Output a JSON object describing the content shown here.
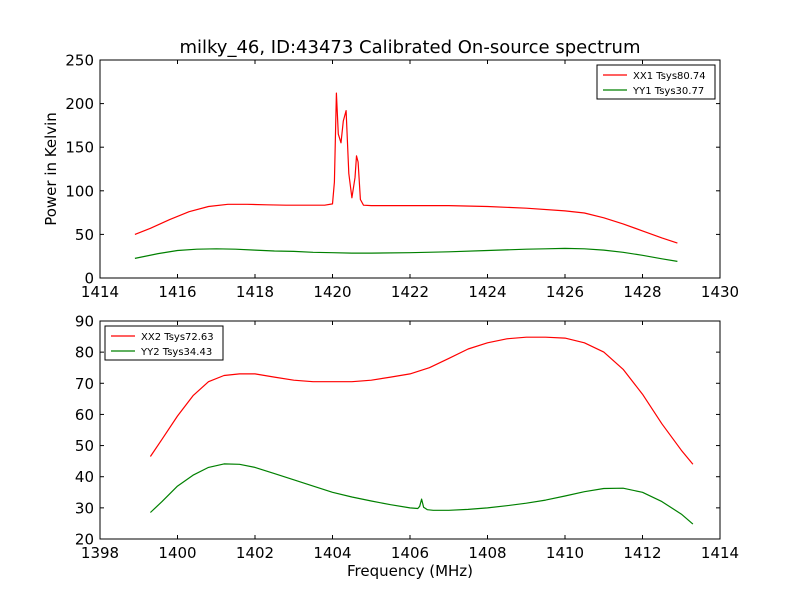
{
  "title": "milky_46, ID:43473 Calibrated On-source spectrum",
  "colors": {
    "xx": "#ff0000",
    "yy": "#008000"
  },
  "chart_data": [
    {
      "type": "line",
      "xlabel": "",
      "ylabel": "Power in Kelvin",
      "xlim": [
        1414,
        1430
      ],
      "ylim": [
        0,
        250
      ],
      "xticks": [
        1414,
        1416,
        1418,
        1420,
        1422,
        1424,
        1426,
        1428,
        1430
      ],
      "yticks": [
        0,
        50,
        100,
        150,
        200,
        250
      ],
      "legend_position": "top-right",
      "series": [
        {
          "name": "XX1 Tsys80.74",
          "color": "#ff0000",
          "x": [
            1414.9,
            1415.3,
            1415.8,
            1416.3,
            1416.8,
            1417.3,
            1417.8,
            1418.3,
            1418.8,
            1419.3,
            1419.8,
            1420.0,
            1420.05,
            1420.1,
            1420.15,
            1420.22,
            1420.28,
            1420.35,
            1420.42,
            1420.5,
            1420.58,
            1420.62,
            1420.66,
            1420.72,
            1420.8,
            1421.0,
            1422.0,
            1423.0,
            1424.0,
            1425.0,
            1426.0,
            1426.5,
            1427.0,
            1427.5,
            1428.0,
            1428.5,
            1428.9
          ],
          "y": [
            50,
            57,
            67,
            76,
            82,
            84.5,
            84.5,
            84,
            83.5,
            83.5,
            83.5,
            85,
            110,
            212,
            165,
            155,
            180,
            192,
            120,
            92,
            115,
            140,
            133,
            90,
            83.5,
            83,
            83,
            83,
            82,
            80,
            77,
            74.5,
            69,
            62,
            54,
            46,
            40
          ]
        },
        {
          "name": "YY1 Tsys30.77",
          "color": "#008000",
          "x": [
            1414.9,
            1415.5,
            1416.0,
            1416.5,
            1417.0,
            1417.5,
            1418.0,
            1418.5,
            1419.0,
            1419.5,
            1420.0,
            1420.5,
            1421.0,
            1422.0,
            1423.0,
            1424.0,
            1425.0,
            1425.5,
            1426.0,
            1426.5,
            1427.0,
            1427.5,
            1428.0,
            1428.5,
            1428.9
          ],
          "y": [
            22.5,
            28,
            31.5,
            33,
            33.5,
            33,
            32,
            31,
            30.5,
            29.5,
            29,
            28.5,
            28.5,
            29,
            30,
            31.5,
            33,
            33.5,
            34,
            33.5,
            32,
            29.5,
            26,
            22,
            19
          ]
        }
      ]
    },
    {
      "type": "line",
      "xlabel": "Frequency (MHz)",
      "ylabel": "",
      "xlim": [
        1398,
        1414
      ],
      "ylim": [
        20,
        90
      ],
      "xticks": [
        1398,
        1400,
        1402,
        1404,
        1406,
        1408,
        1410,
        1412,
        1414
      ],
      "yticks": [
        20,
        30,
        40,
        50,
        60,
        70,
        80,
        90
      ],
      "legend_position": "top-left",
      "series": [
        {
          "name": "XX2 Tsys72.63",
          "color": "#ff0000",
          "x": [
            1399.3,
            1399.6,
            1400.0,
            1400.4,
            1400.8,
            1401.2,
            1401.6,
            1402.0,
            1402.5,
            1403.0,
            1403.5,
            1404.0,
            1404.5,
            1405.0,
            1405.5,
            1406.0,
            1406.5,
            1407.0,
            1407.5,
            1408.0,
            1408.5,
            1409.0,
            1409.5,
            1410.0,
            1410.5,
            1411.0,
            1411.5,
            1412.0,
            1412.5,
            1413.0,
            1413.3
          ],
          "y": [
            46.5,
            52,
            59.5,
            66,
            70.5,
            72.5,
            73,
            73,
            72,
            71,
            70.5,
            70.5,
            70.5,
            71,
            72,
            73,
            75,
            78,
            81,
            83,
            84.3,
            84.8,
            84.8,
            84.5,
            83,
            80,
            74.5,
            66.5,
            57,
            48.5,
            44
          ]
        },
        {
          "name": "YY2 Tsys34.43",
          "color": "#008000",
          "x": [
            1399.3,
            1399.6,
            1400.0,
            1400.4,
            1400.8,
            1401.2,
            1401.6,
            1402.0,
            1402.5,
            1403.0,
            1403.5,
            1404.0,
            1404.5,
            1405.0,
            1405.5,
            1406.0,
            1406.2,
            1406.25,
            1406.3,
            1406.35,
            1406.45,
            1406.6,
            1407.0,
            1407.5,
            1408.0,
            1408.5,
            1409.0,
            1409.5,
            1410.0,
            1410.5,
            1411.0,
            1411.5,
            1412.0,
            1412.5,
            1413.0,
            1413.3
          ],
          "y": [
            28.5,
            32,
            37,
            40.5,
            43,
            44.1,
            44,
            43,
            41,
            39,
            37,
            35,
            33.5,
            32.2,
            31,
            30,
            29.8,
            30.5,
            32.8,
            30.2,
            29.4,
            29.2,
            29.2,
            29.5,
            30,
            30.7,
            31.5,
            32.5,
            33.8,
            35.2,
            36.2,
            36.3,
            35,
            32,
            28,
            24.8
          ]
        }
      ]
    }
  ]
}
